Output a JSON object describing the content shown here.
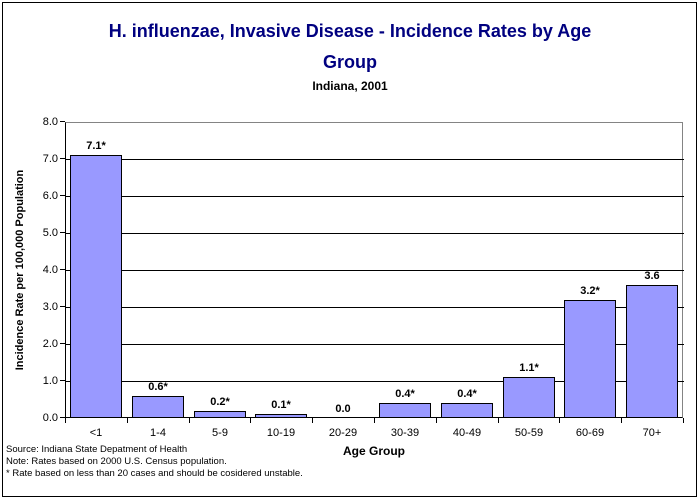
{
  "title": {
    "line1": "H. influenzae, Invasive Disease - Incidence Rates by Age",
    "line2": "Group",
    "subtitle": "Indiana, 2001",
    "color": "#000080"
  },
  "chart_data": {
    "type": "bar",
    "title": "H. influenzae, Invasive Disease - Incidence Rates by Age Group",
    "subtitle": "Indiana, 2001",
    "categories": [
      "<1",
      "1-4",
      "5-9",
      "10-19",
      "20-29",
      "30-39",
      "40-49",
      "50-59",
      "60-69",
      "70+"
    ],
    "values": [
      7.1,
      0.6,
      0.2,
      0.1,
      0.0,
      0.4,
      0.4,
      1.1,
      3.2,
      3.6
    ],
    "bar_labels": [
      "7.1*",
      "0.6*",
      "0.2*",
      "0.1*",
      "0.0",
      "0.4*",
      "0.4*",
      "1.1*",
      "3.2*",
      "3.6"
    ],
    "xlabel": "Age Group",
    "ylabel": "Incidence Rate per 100,000 Population",
    "ylim": [
      0,
      8
    ],
    "ytick_step": 1,
    "ytick_labels": [
      "0.0",
      "1.0",
      "2.0",
      "3.0",
      "4.0",
      "5.0",
      "6.0",
      "7.0",
      "8.0"
    ],
    "grid": true,
    "legend": "none",
    "bar_color": "#9999FF",
    "bar_border_color": "#000000",
    "gridline_color": "#000000",
    "plot_border_color": "#848484"
  },
  "footer": {
    "lines": [
      "Source: Indiana State Depatment of Health",
      "Note: Rates based on 2000 U.S. Census population.",
      "* Rate based on less than 20 cases and should be cosidered unstable."
    ]
  }
}
